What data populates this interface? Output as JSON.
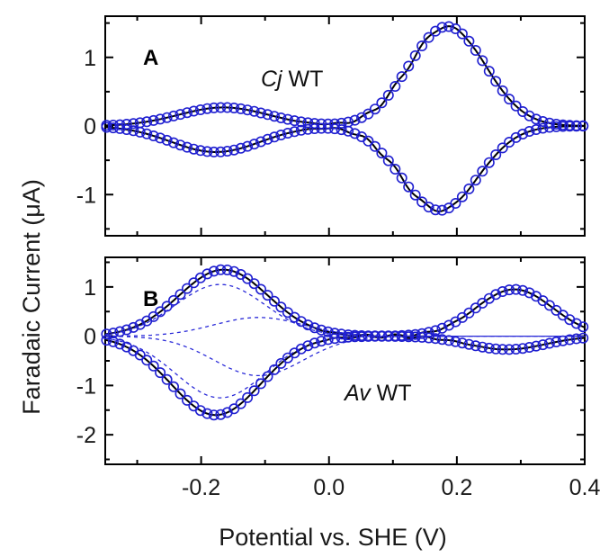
{
  "chart_data": [
    {
      "type": "line",
      "panel_label": "A",
      "annotation": {
        "italic": "Cj",
        "text": " WT"
      },
      "xlabel": "Potential vs. SHE (V)",
      "ylabel": "Faradaic Current (μA)",
      "xlim": [
        -0.35,
        0.4
      ],
      "ylim": [
        -1.6,
        1.6
      ],
      "xticks": [
        -0.2,
        0.0,
        0.2,
        0.4
      ],
      "yticks": [
        -1,
        0,
        1
      ],
      "ytick_labels": [
        "-1",
        "0",
        "1"
      ],
      "peaks": [
        {
          "E": -0.17,
          "ox": 0.27,
          "red": -0.38,
          "width": 0.07
        },
        {
          "E": 0.18,
          "ox": 1.45,
          "red": -1.23,
          "width": 0.06
        }
      ],
      "series": [
        {
          "style": "solid",
          "color": "#000000"
        },
        {
          "style": "circles",
          "color": "#1f1fd0"
        }
      ]
    },
    {
      "type": "line",
      "panel_label": "B",
      "annotation": {
        "italic": "Av",
        "text": " WT"
      },
      "xlabel": "Potential vs. SHE (V)",
      "ylabel": "Faradaic Current (μA)",
      "xlim": [
        -0.35,
        0.4
      ],
      "ylim": [
        -2.6,
        1.6
      ],
      "xticks": [
        -0.2,
        0.0,
        0.2,
        0.4
      ],
      "xtick_labels": [
        "-0.2",
        "0.0",
        "0.2",
        "0.4"
      ],
      "yticks": [
        -2,
        -1,
        0,
        1
      ],
      "ytick_labels": [
        "-2",
        "-1",
        "0",
        "1"
      ],
      "peaks": [
        {
          "E": -0.17,
          "ox": 1.35,
          "red": -1.6,
          "width": 0.07
        },
        {
          "E": 0.285,
          "ox": 0.95,
          "red": -0.27,
          "width": 0.06
        }
      ],
      "components": [
        {
          "E": -0.17,
          "ox": 1.05,
          "red": -1.25
        },
        {
          "E": -0.11,
          "ox": 0.38,
          "red": -0.8
        }
      ],
      "series": [
        {
          "style": "solid",
          "color": "#000000"
        },
        {
          "style": "circles",
          "color": "#1f1fd0"
        },
        {
          "style": "dashed",
          "color": "#2a2ad8"
        }
      ]
    }
  ]
}
